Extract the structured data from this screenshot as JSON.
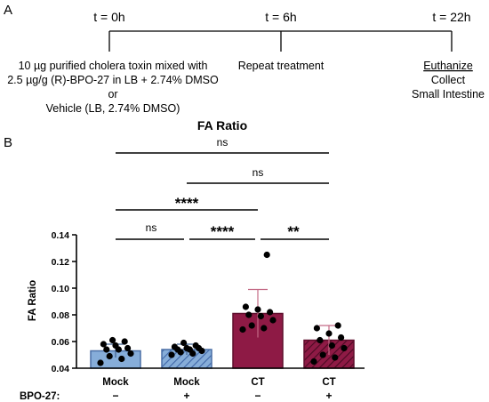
{
  "panel_a": {
    "label": "A",
    "timepoints": [
      {
        "label": "t = 0h"
      },
      {
        "label": "t = 6h"
      },
      {
        "label": "t = 22h"
      }
    ],
    "treatment_lines": [
      "10 µg purified cholera toxin mixed with",
      "2.5 µg/g (R)-BPO-27 in LB + 2.74% DMSO",
      "or",
      "Vehicle (LB, 2.74% DMSO)"
    ],
    "repeat_text": "Repeat treatment",
    "end_lines": [
      "Euthanize",
      "Collect",
      "Small Intestine"
    ]
  },
  "panel_b": {
    "label": "B",
    "bpo_row_label": "BPO-27:",
    "significance": [
      {
        "label": "ns"
      },
      {
        "label": "ns"
      },
      {
        "label": "****"
      },
      {
        "label": "ns"
      },
      {
        "label": "****"
      },
      {
        "label": "**"
      }
    ]
  },
  "colors": {
    "mock": "#86ADD9",
    "mock_edge": "#4A6FA5",
    "ct": "#8E1A45",
    "ct_edge": "#5E0E2C",
    "errorbar": "#C46B86"
  },
  "chart_data": {
    "type": "bar",
    "title": "FA Ratio",
    "xlabel": "",
    "ylabel": "FA Ratio",
    "ylim": [
      0.04,
      0.14
    ],
    "yticks": [
      "0.04",
      "0.06",
      "0.08",
      "0.10",
      "0.12",
      "0.14"
    ],
    "categories": [
      "Mock",
      "Mock",
      "CT",
      "CT"
    ],
    "bpo27": [
      "−",
      "+",
      "−",
      "+"
    ],
    "hatched": [
      false,
      true,
      false,
      true
    ],
    "values": [
      0.053,
      0.054,
      0.081,
      0.061
    ],
    "error_sd": [
      0.005,
      0.004,
      0.018,
      0.011
    ],
    "points": [
      [
        0.044,
        0.047,
        0.049,
        0.051,
        0.054,
        0.054,
        0.055,
        0.057,
        0.058,
        0.06,
        0.061
      ],
      [
        0.05,
        0.051,
        0.052,
        0.053,
        0.054,
        0.054,
        0.055,
        0.055,
        0.056,
        0.057,
        0.059
      ],
      [
        0.069,
        0.07,
        0.072,
        0.076,
        0.079,
        0.08,
        0.082,
        0.084,
        0.086,
        0.125
      ],
      [
        0.045,
        0.048,
        0.05,
        0.055,
        0.057,
        0.061,
        0.063,
        0.066,
        0.07,
        0.072
      ]
    ],
    "grid": false
  }
}
